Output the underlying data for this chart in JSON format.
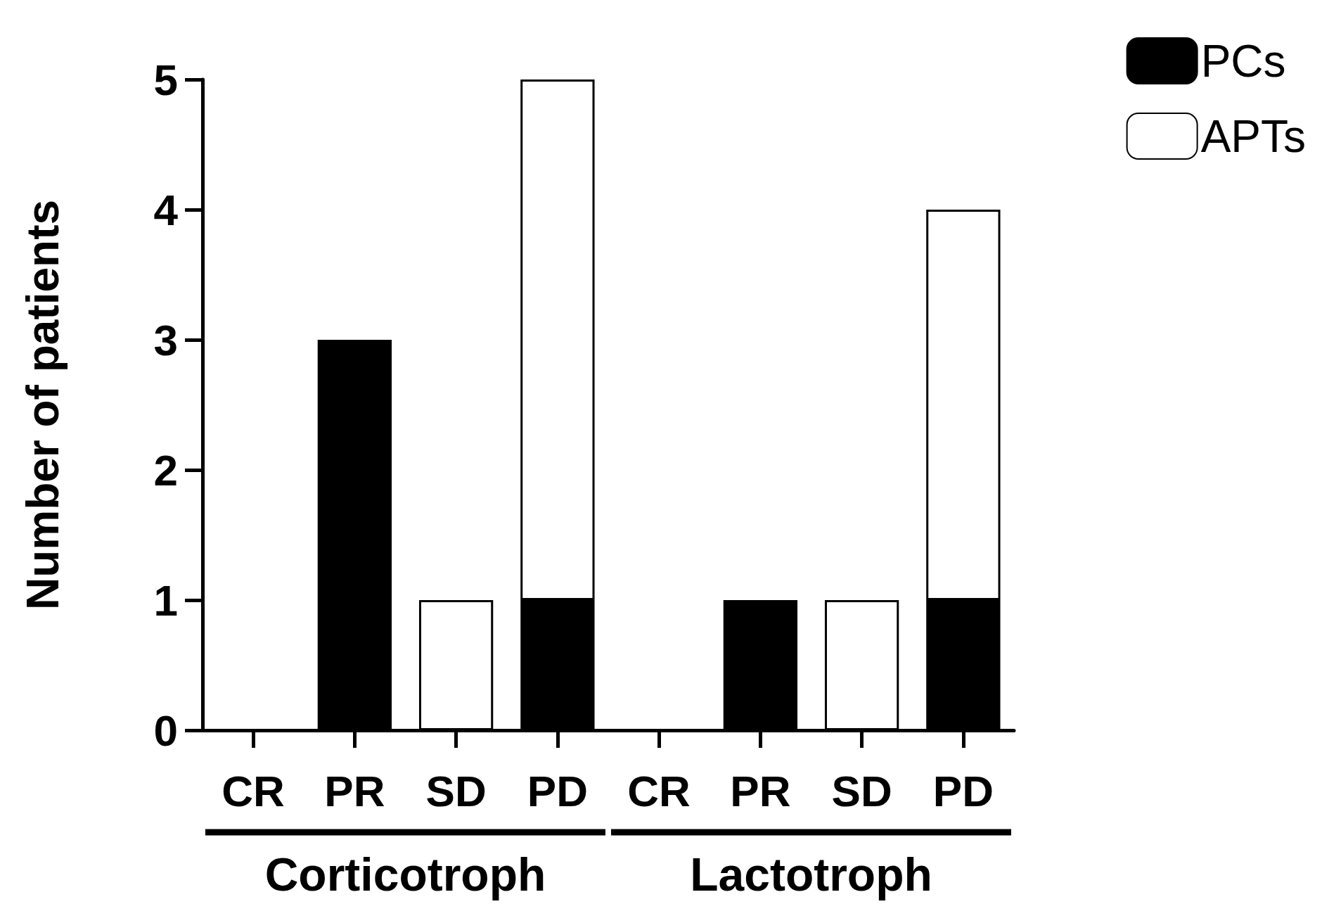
{
  "chart_data": {
    "type": "bar",
    "stacked": true,
    "ylabel": "Number of patients",
    "categories": [
      "CR",
      "PR",
      "SD",
      "PD",
      "CR",
      "PR",
      "SD",
      "PD"
    ],
    "series": [
      {
        "name": "PCs",
        "color": "#000000",
        "values": [
          0,
          3,
          0,
          1,
          0,
          1,
          0,
          1
        ]
      },
      {
        "name": "APTs",
        "color": "#ffffff",
        "values": [
          0,
          0,
          1,
          4,
          0,
          0,
          1,
          3
        ]
      }
    ],
    "ylim": [
      0,
      5
    ],
    "yticks": [
      0,
      1,
      2,
      3,
      4,
      5
    ],
    "grid": false,
    "legend": "top right",
    "annotations": [
      "Corticotroph",
      "Lactotroph"
    ]
  }
}
